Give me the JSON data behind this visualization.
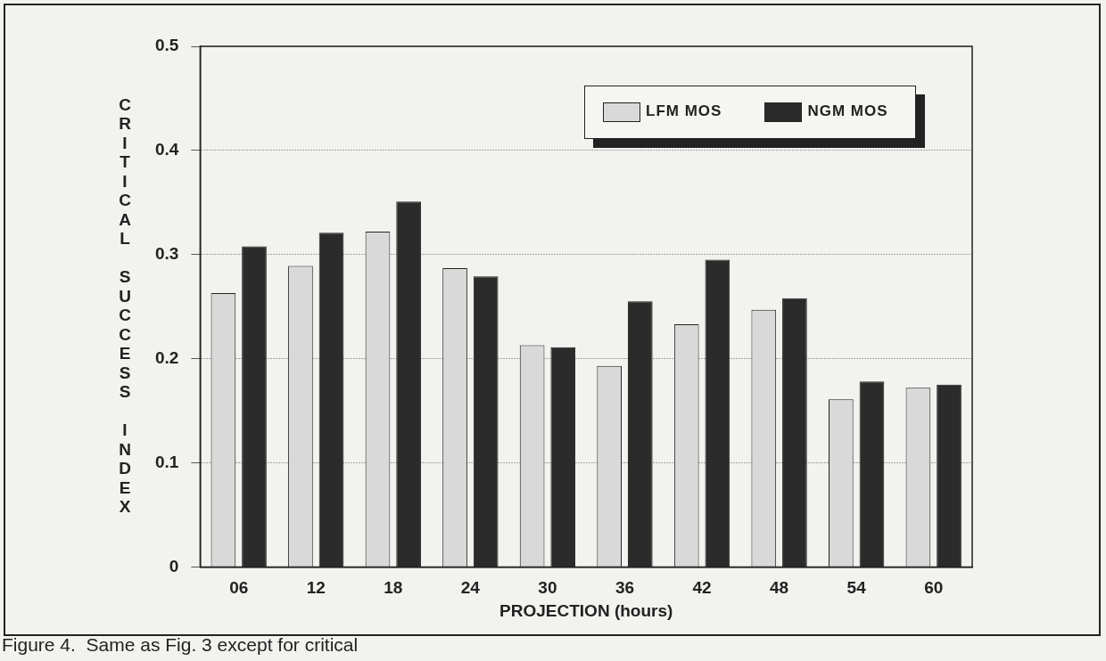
{
  "chart_data": {
    "type": "bar",
    "xlabel": "PROJECTION (hours)",
    "ylabel": "CRITICAL SUCCESS INDEX",
    "categories": [
      "06",
      "12",
      "18",
      "24",
      "30",
      "36",
      "42",
      "48",
      "54",
      "60"
    ],
    "series": [
      {
        "name": "LFM MOS",
        "color": "#d9d9d9",
        "values": [
          0.263,
          0.289,
          0.322,
          0.287,
          0.213,
          0.193,
          0.233,
          0.247,
          0.161,
          0.172
        ]
      },
      {
        "name": "NGM MOS",
        "color": "#2b2b2b",
        "values": [
          0.308,
          0.321,
          0.351,
          0.279,
          0.211,
          0.255,
          0.295,
          0.258,
          0.178,
          0.175
        ]
      }
    ],
    "ylim": [
      0,
      0.5
    ],
    "yticks": [
      0,
      0.1,
      0.2,
      0.3,
      0.4,
      0.5
    ],
    "grid": "y",
    "legend": "top right",
    "annotations": [
      "Figure 4.  Same as Fig. 3 except for critical"
    ]
  }
}
